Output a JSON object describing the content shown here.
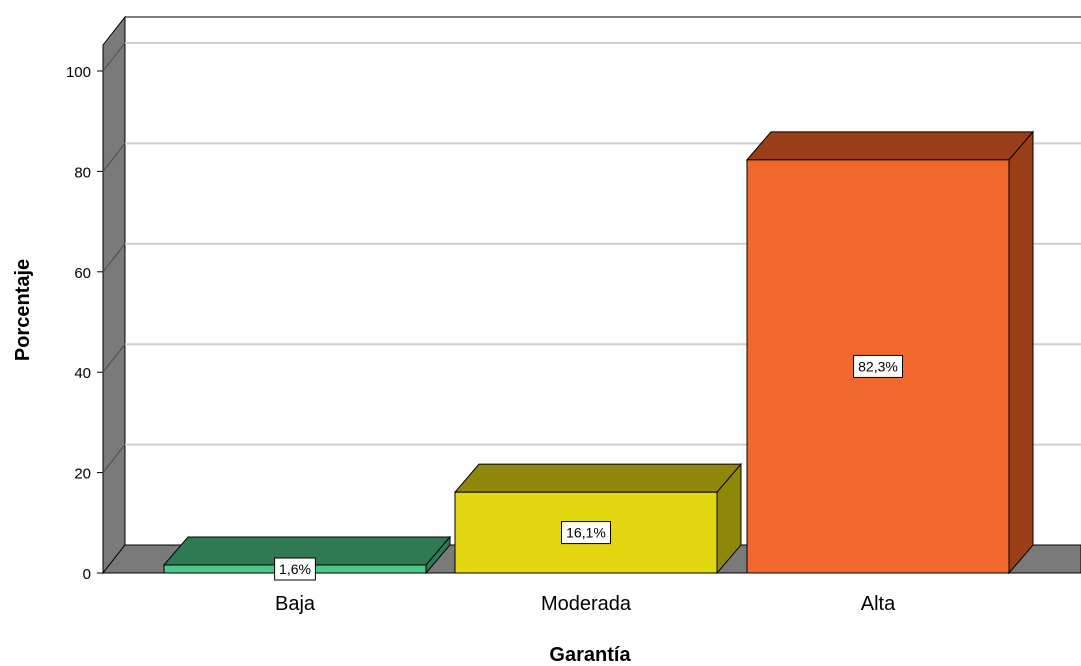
{
  "chart_data": {
    "type": "bar",
    "style": "3d",
    "categories": [
      "Baja",
      "Moderada",
      "Alta"
    ],
    "values": [
      1.6,
      16.1,
      82.3
    ],
    "data_labels": [
      "1,6%",
      "16,1%",
      "82,3%"
    ],
    "xlabel": "Garantía",
    "ylabel": "Porcentaje",
    "ylim": [
      0,
      100
    ],
    "yticks": [
      "0",
      "20",
      "40",
      "60",
      "80",
      "100"
    ],
    "grid": true,
    "colors": {
      "Baja": {
        "front": "#4dc889",
        "top": "#2f7a53",
        "side": "#2f7a53"
      },
      "Moderada": {
        "front": "#e3d712",
        "top": "#8f870a",
        "side": "#8f870a"
      },
      "Alta": {
        "front": "#f1682c",
        "top": "#9a3f19",
        "side": "#9a3f19"
      }
    }
  }
}
